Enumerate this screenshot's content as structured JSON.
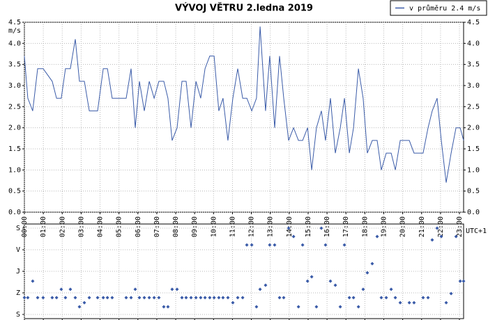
{
  "chart_data": [
    {
      "type": "line",
      "title": "VÝVOJ VĚTRU  2.ledna 2019",
      "y_label": "m/s",
      "x_note": "UTC+1",
      "grid": true,
      "legend": "top-right",
      "x": [
        0,
        0.18,
        0.44,
        0.7,
        0.99,
        1.47,
        1.7,
        1.95,
        2.17,
        2.43,
        2.69,
        2.91,
        3.17,
        3.43,
        3.87,
        4.17,
        4.39,
        4.64,
        5.38,
        5.64,
        5.86,
        6.08,
        6.34,
        6.6,
        6.86,
        7.11,
        7.37,
        7.59,
        7.81,
        8.07,
        8.33,
        8.55,
        8.81,
        9.07,
        9.32,
        9.55,
        9.8,
        10.03,
        10.28,
        10.5,
        10.76,
        11.02,
        11.28,
        11.54,
        11.76,
        12.02,
        12.27,
        12.46,
        12.75,
        12.97,
        13.23,
        13.49,
        13.71,
        13.97,
        14.23,
        14.49,
        14.71,
        14.97,
        15.19,
        15.44,
        15.7,
        15.92,
        16.18,
        16.44,
        16.7,
        16.92,
        17.18,
        17.4,
        17.66,
        17.91,
        18.13,
        18.39,
        18.65,
        18.87,
        19.13,
        19.39,
        19.61,
        19.87,
        20.35,
        20.6,
        21.08,
        21.34,
        21.56,
        21.82,
        22.04,
        22.3,
        22.56,
        22.82,
        23.04,
        23.22
      ],
      "series": [
        {
          "name": "v průměru 2.4 m/s",
          "color": "#3a5ba8",
          "values": [
            3.7,
            2.7,
            2.4,
            3.4,
            3.4,
            3.1,
            2.7,
            2.7,
            3.4,
            3.4,
            4.1,
            3.1,
            3.1,
            2.4,
            2.4,
            3.4,
            3.4,
            2.7,
            2.7,
            3.4,
            2.0,
            3.1,
            2.4,
            3.1,
            2.7,
            3.1,
            3.1,
            2.7,
            1.7,
            2.0,
            3.1,
            3.1,
            2.0,
            3.1,
            2.7,
            3.4,
            3.7,
            3.7,
            2.4,
            2.7,
            1.7,
            2.7,
            3.4,
            2.7,
            2.7,
            2.4,
            2.7,
            4.4,
            2.4,
            3.7,
            2.0,
            3.7,
            2.7,
            1.7,
            2.0,
            1.7,
            1.7,
            2.0,
            1.0,
            2.0,
            2.4,
            1.7,
            2.7,
            1.4,
            2.0,
            2.7,
            1.4,
            2.0,
            3.4,
            2.7,
            1.4,
            1.7,
            1.7,
            1.0,
            1.4,
            1.4,
            1.0,
            1.7,
            1.7,
            1.4,
            1.4,
            2.0,
            2.4,
            2.7,
            1.7,
            0.7,
            1.4,
            2.0,
            2.0,
            1.7
          ]
        }
      ],
      "xlim": [
        0,
        23.22
      ],
      "xticks": [
        {
          "value": 0,
          "label": "00:00"
        },
        {
          "value": 1,
          "label": "01:00"
        },
        {
          "value": 2,
          "label": "02:00"
        },
        {
          "value": 3,
          "label": "03:00"
        },
        {
          "value": 4,
          "label": "04:00"
        },
        {
          "value": 5,
          "label": "05:00"
        },
        {
          "value": 6,
          "label": "06:00"
        },
        {
          "value": 7,
          "label": "07:00"
        },
        {
          "value": 8,
          "label": "08:00"
        },
        {
          "value": 9,
          "label": "09:00"
        },
        {
          "value": 10,
          "label": "10:00"
        },
        {
          "value": 11,
          "label": "11:00"
        },
        {
          "value": 12,
          "label": "12:00"
        },
        {
          "value": 13,
          "label": "13:00"
        },
        {
          "value": 14,
          "label": "14:00"
        },
        {
          "value": 15,
          "label": "15:00"
        },
        {
          "value": 16,
          "label": "16:00"
        },
        {
          "value": 17,
          "label": "17:00"
        },
        {
          "value": 18,
          "label": "18:00"
        },
        {
          "value": 19,
          "label": "19:00"
        },
        {
          "value": 20,
          "label": "20:00"
        },
        {
          "value": 21,
          "label": "21:00"
        },
        {
          "value": 22,
          "label": "22:00"
        },
        {
          "value": 23,
          "label": "23:00"
        }
      ],
      "ylim": [
        0,
        4.5
      ],
      "yticks": [
        {
          "value": 0,
          "label": "0.0"
        },
        {
          "value": 0.5,
          "label": "0.5"
        },
        {
          "value": 1,
          "label": "1.0"
        },
        {
          "value": 1.5,
          "label": "1.5"
        },
        {
          "value": 2,
          "label": "2.0"
        },
        {
          "value": 2.5,
          "label": "2.5"
        },
        {
          "value": 3,
          "label": "3.0"
        },
        {
          "value": 3.5,
          "label": "3.5"
        },
        {
          "value": 4,
          "label": "4.0"
        },
        {
          "value": 4.5,
          "label": "4.5"
        }
      ]
    },
    {
      "type": "scatter",
      "grid": true,
      "color": "#3a5ba8",
      "x": [
        0,
        0.18,
        0.44,
        0.7,
        0.99,
        1.47,
        1.7,
        1.95,
        2.17,
        2.43,
        2.69,
        2.91,
        3.17,
        3.43,
        3.87,
        4.17,
        4.39,
        4.64,
        5.38,
        5.64,
        5.86,
        6.08,
        6.34,
        6.6,
        6.86,
        7.11,
        7.37,
        7.59,
        7.81,
        8.07,
        8.33,
        8.55,
        8.81,
        9.07,
        9.32,
        9.55,
        9.8,
        10.03,
        10.28,
        10.5,
        10.76,
        11.02,
        11.28,
        11.54,
        11.76,
        12.02,
        12.27,
        12.46,
        12.75,
        12.97,
        13.23,
        13.49,
        13.71,
        13.97,
        14.23,
        14.49,
        14.71,
        14.97,
        15.19,
        15.44,
        15.7,
        15.92,
        16.18,
        16.44,
        16.7,
        16.92,
        17.18,
        17.4,
        17.66,
        17.91,
        18.13,
        18.39,
        18.65,
        18.87,
        19.13,
        19.39,
        19.61,
        19.87,
        20.35,
        20.6,
        21.08,
        21.34,
        21.56,
        21.82,
        22.04,
        22.3,
        22.56,
        22.82,
        23.04,
        23.22
      ],
      "values": [
        290,
        290,
        221,
        290,
        290,
        290,
        290,
        255,
        290,
        255,
        290,
        328,
        311,
        290,
        290,
        290,
        290,
        290,
        290,
        290,
        255,
        290,
        290,
        290,
        290,
        290,
        328,
        328,
        255,
        255,
        290,
        290,
        290,
        290,
        290,
        290,
        290,
        290,
        290,
        290,
        290,
        311,
        290,
        290,
        70,
        70,
        328,
        255,
        238,
        70,
        70,
        290,
        290,
        0,
        35,
        328,
        70,
        221,
        203,
        328,
        0,
        70,
        221,
        238,
        328,
        70,
        290,
        290,
        328,
        255,
        186,
        148,
        35,
        290,
        290,
        255,
        290,
        311,
        311,
        311,
        290,
        290,
        49,
        0,
        35,
        311,
        273,
        35,
        221,
        221
      ],
      "xlim": [
        0,
        23.22
      ],
      "ylim": [
        0,
        360
      ],
      "yticks": [
        {
          "value": 0,
          "label": "S"
        },
        {
          "value": 90,
          "label": "V"
        },
        {
          "value": 180,
          "label": "J"
        },
        {
          "value": 270,
          "label": "Z"
        },
        {
          "value": 360,
          "label": "S"
        }
      ]
    }
  ]
}
